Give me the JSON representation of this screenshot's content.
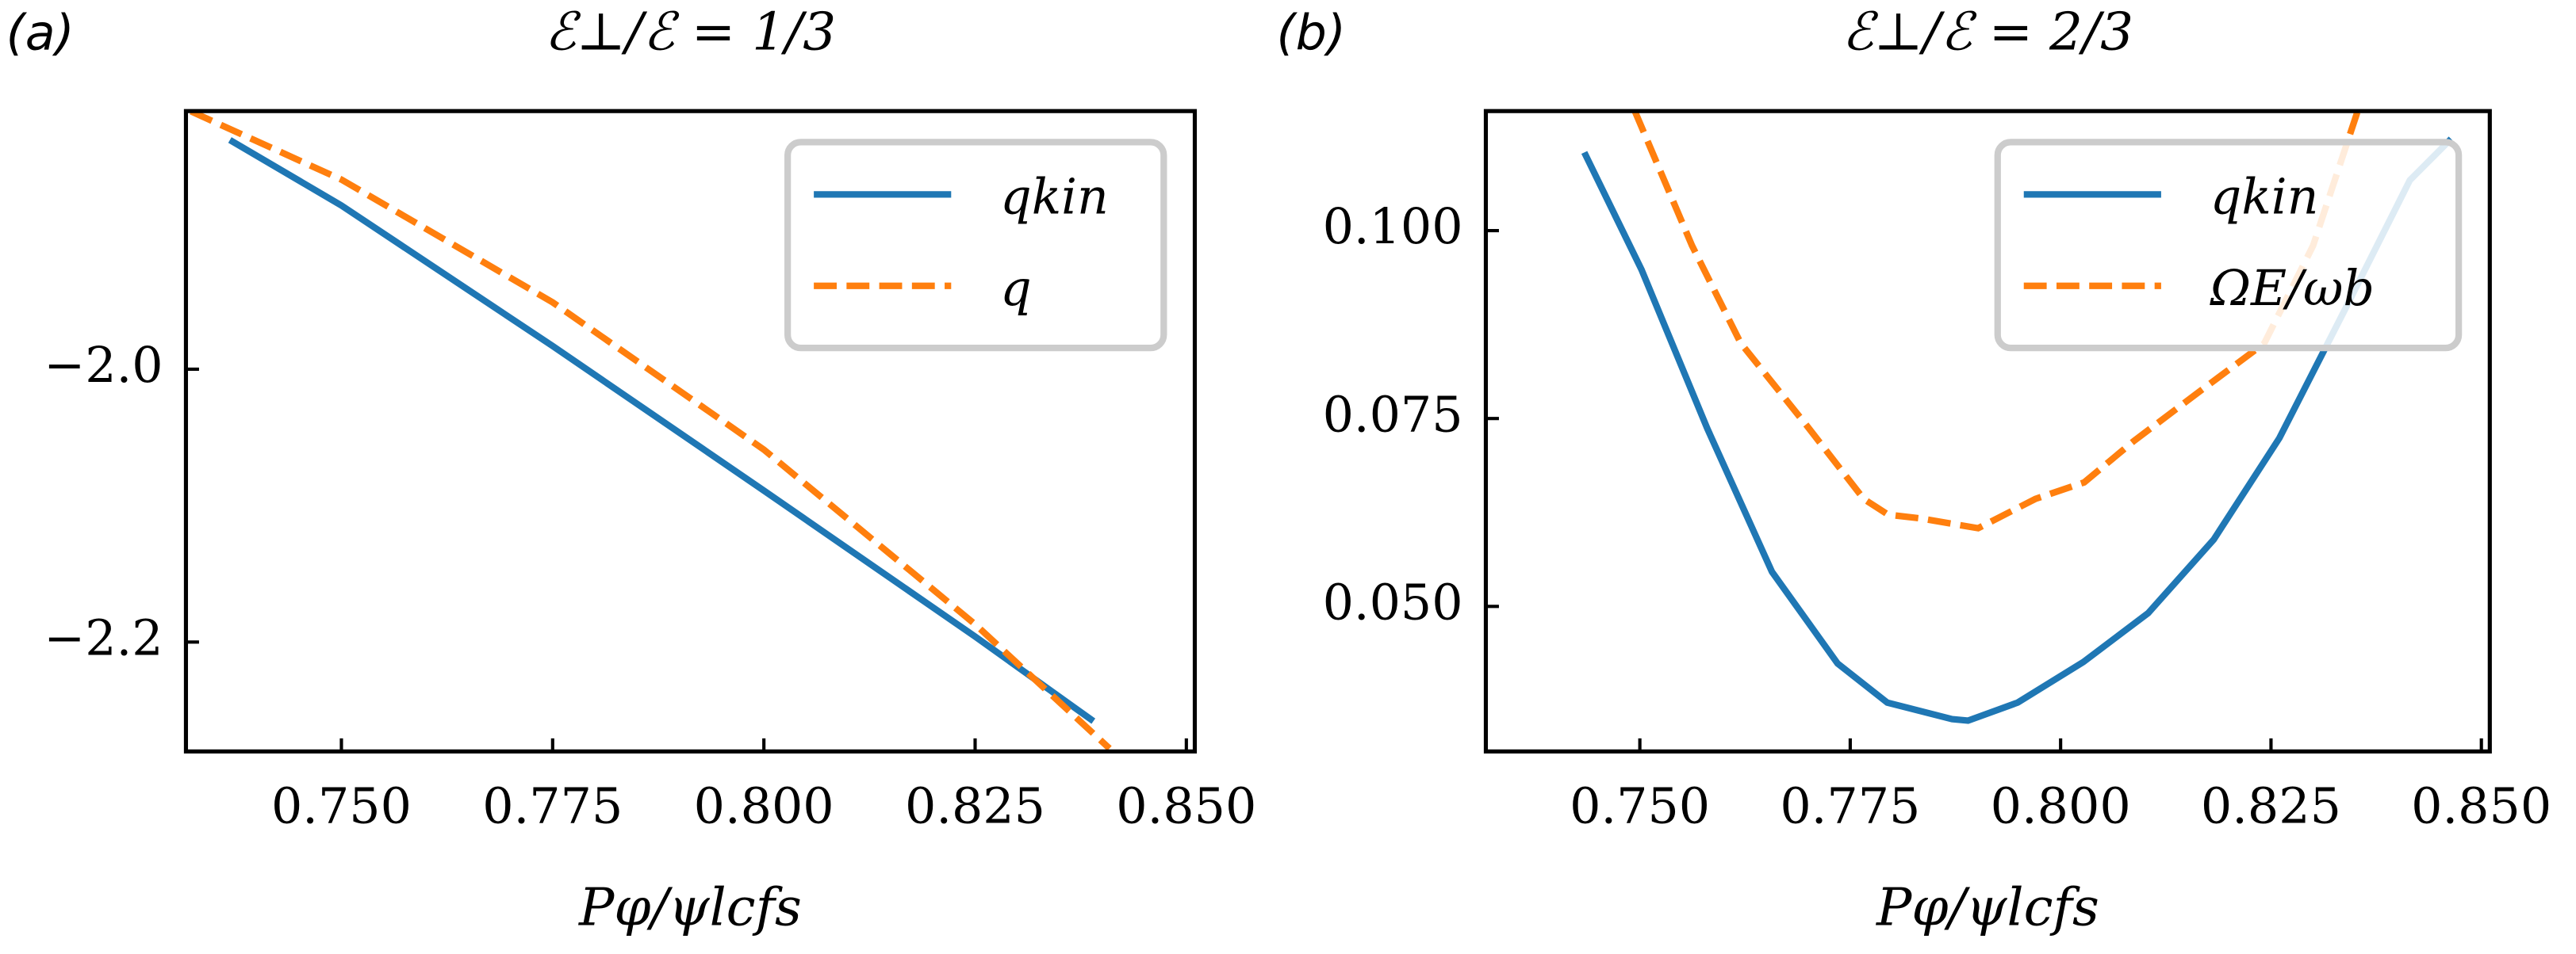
{
  "chart_data": [
    {
      "type": "line",
      "panel_label": "(a)",
      "title": "ℰ⊥/ℰ = 1/3",
      "x_label": "Pφ/ψlcfs",
      "xlim": [
        0.7316,
        0.851
      ],
      "ylim": [
        -2.2802,
        -1.8108
      ],
      "xticks": [
        {
          "value": 0.75,
          "label": "0.750"
        },
        {
          "value": 0.775,
          "label": "0.775"
        },
        {
          "value": 0.8,
          "label": "0.800"
        },
        {
          "value": 0.825,
          "label": "0.825"
        },
        {
          "value": 0.85,
          "label": "0.850"
        }
      ],
      "yticks": [
        {
          "value": -2.0,
          "label": "−2.0"
        },
        {
          "value": -2.2,
          "label": "−2.2"
        }
      ],
      "legend": "upper right",
      "series": [
        {
          "name": "qkin",
          "color": "#1f77b4",
          "dash": false,
          "x": [
            0.7368,
            0.75,
            0.775,
            0.8,
            0.825,
            0.839
          ],
          "values": [
            -1.832,
            -1.88,
            -1.983,
            -2.089,
            -2.196,
            -2.258
          ]
        },
        {
          "name": "q",
          "color": "#ff7f0e",
          "dash": true,
          "x": [
            0.7322,
            0.75,
            0.775,
            0.8,
            0.825,
            0.8409
          ],
          "values": [
            -1.811,
            -1.861,
            -1.951,
            -2.059,
            -2.187,
            -2.278
          ]
        }
      ]
    },
    {
      "type": "line",
      "panel_label": "(b)",
      "title": "ℰ⊥/ℰ = 2/3",
      "x_label": "Pφ/ψlcfs",
      "xlim": [
        0.7317,
        0.851
      ],
      "ylim": [
        0.0307,
        0.1159
      ],
      "xticks": [
        {
          "value": 0.75,
          "label": "0.750"
        },
        {
          "value": 0.775,
          "label": "0.775"
        },
        {
          "value": 0.8,
          "label": "0.800"
        },
        {
          "value": 0.825,
          "label": "0.825"
        },
        {
          "value": 0.85,
          "label": "0.850"
        }
      ],
      "yticks": [
        {
          "value": 0.05,
          "label": "0.050"
        },
        {
          "value": 0.075,
          "label": "0.075"
        },
        {
          "value": 0.1,
          "label": "0.100"
        }
      ],
      "legend": "upper right",
      "series": [
        {
          "name": "qkin",
          "color": "#1f77b4",
          "dash": false,
          "x": [
            0.7434,
            0.7502,
            0.758,
            0.7657,
            0.7735,
            0.7794,
            0.7871,
            0.789,
            0.7949,
            0.8027,
            0.8104,
            0.8182,
            0.826,
            0.8337,
            0.8415,
            0.8464
          ],
          "values": [
            0.1104,
            0.0948,
            0.0737,
            0.0546,
            0.0424,
            0.0372,
            0.035,
            0.0348,
            0.0372,
            0.0426,
            0.0491,
            0.0589,
            0.0724,
            0.0893,
            0.1067,
            0.1122
          ]
        },
        {
          "name": "ΩE/ωb",
          "color": "#ff7f0e",
          "dash": true,
          "x": [
            0.7494,
            0.7562,
            0.762,
            0.7698,
            0.7766,
            0.7795,
            0.7834,
            0.7902,
            0.797,
            0.8028,
            0.8087,
            0.8164,
            0.8242,
            0.83,
            0.8353
          ],
          "values": [
            0.1159,
            0.098,
            0.085,
            0.0741,
            0.0643,
            0.0622,
            0.0617,
            0.0604,
            0.0643,
            0.0665,
            0.072,
            0.0785,
            0.085,
            0.098,
            0.1159
          ]
        }
      ]
    }
  ]
}
